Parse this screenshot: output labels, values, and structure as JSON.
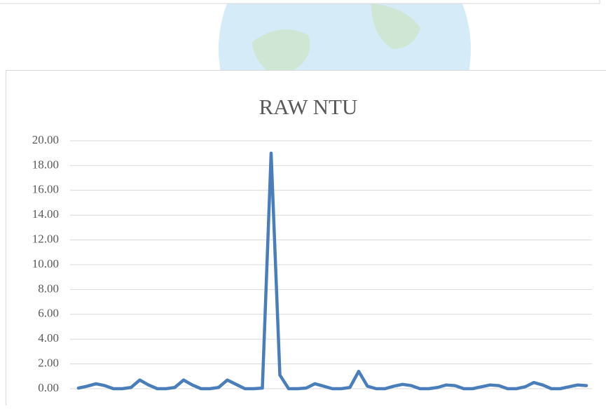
{
  "chart_data": {
    "type": "line",
    "title": "RAW NTU",
    "categories": [
      null,
      null,
      null,
      null,
      null,
      null,
      null,
      null,
      null,
      null,
      null,
      null,
      null,
      null,
      null,
      null,
      null,
      null,
      null,
      null,
      null,
      null,
      null,
      null,
      null,
      null,
      null,
      null,
      null,
      null,
      null,
      null,
      null,
      null,
      null,
      null,
      null,
      null,
      null,
      null,
      null,
      null,
      null,
      null,
      null,
      null,
      null,
      null,
      null,
      null,
      null,
      null,
      null,
      null,
      null,
      null,
      null,
      null,
      null
    ],
    "series": [
      {
        "name": "RAW NTU",
        "color": "#4a7ebb",
        "values": [
          0.05,
          0.2,
          0.4,
          0.25,
          0,
          0,
          0.1,
          0.7,
          0.3,
          0,
          0,
          0.1,
          0.7,
          0.3,
          0,
          0,
          0.1,
          0.7,
          0.35,
          0,
          0,
          0.05,
          19,
          1.1,
          0,
          0,
          0.05,
          0.4,
          0.2,
          0,
          0,
          0.1,
          1.4,
          0.2,
          0,
          0,
          0.2,
          0.35,
          0.25,
          0,
          0,
          0.1,
          0.3,
          0.25,
          0,
          0,
          0.15,
          0.3,
          0.25,
          0,
          0,
          0.15,
          0.5,
          0.3,
          0,
          0,
          0.15,
          0.3,
          0.25
        ]
      }
    ],
    "ylim": [
      0,
      20
    ],
    "yticks": [
      {
        "value": 0,
        "label": "0.00"
      },
      {
        "value": 2,
        "label": "2.00"
      },
      {
        "value": 4,
        "label": "4.00"
      },
      {
        "value": 6,
        "label": "6.00"
      },
      {
        "value": 8,
        "label": "8.00"
      },
      {
        "value": 10,
        "label": "10.00"
      },
      {
        "value": 12,
        "label": "12.00"
      },
      {
        "value": 14,
        "label": "14.00"
      },
      {
        "value": 16,
        "label": "16.00"
      },
      {
        "value": 18,
        "label": "18.00"
      },
      {
        "value": 20,
        "label": "20.00"
      }
    ],
    "grid": true
  }
}
